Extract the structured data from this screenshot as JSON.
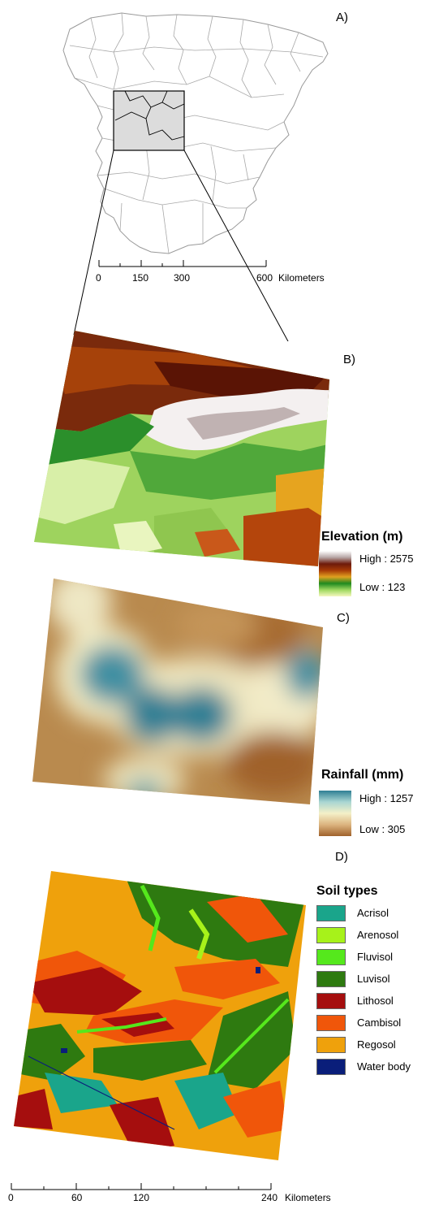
{
  "panels": {
    "a": {
      "label": "A)"
    },
    "b": {
      "label": "B)"
    },
    "c": {
      "label": "C)"
    },
    "d": {
      "label": "D)"
    }
  },
  "scale_top": {
    "ticks": [
      "0",
      "150",
      "300",
      "600"
    ],
    "unit": "Kilometers"
  },
  "scale_bottom": {
    "ticks": [
      "0",
      "60",
      "120",
      "240"
    ],
    "unit": "Kilometers"
  },
  "elevation_legend": {
    "title": "Elevation (m)",
    "high": "High : 2575",
    "low": "Low : 123",
    "colors": [
      "#ffffff",
      "#b7a6a6",
      "#6e1a0a",
      "#a63a06",
      "#e0a020",
      "#1f8a1f",
      "#9fd860",
      "#f5f7c0"
    ]
  },
  "rainfall_legend": {
    "title": "Rainfall (mm)",
    "high": "High : 1257",
    "low": "Low : 305",
    "colors": [
      "#2f7f94",
      "#a9d6d2",
      "#f4f0c8",
      "#dcb47f",
      "#a0622c"
    ]
  },
  "soil_legend": {
    "title": "Soil types",
    "items": [
      {
        "label": "Acrisol",
        "color": "#1aa58b"
      },
      {
        "label": "Arenosol",
        "color": "#a7f21a"
      },
      {
        "label": "Fluvisol",
        "color": "#55e81c"
      },
      {
        "label": "Luvisol",
        "color": "#2e7a10"
      },
      {
        "label": "Lithosol",
        "color": "#a50e0e"
      },
      {
        "label": "Cambisol",
        "color": "#f0560a"
      },
      {
        "label": "Regosol",
        "color": "#efa10c"
      },
      {
        "label": "Water body",
        "color": "#0a1e7a"
      }
    ]
  }
}
